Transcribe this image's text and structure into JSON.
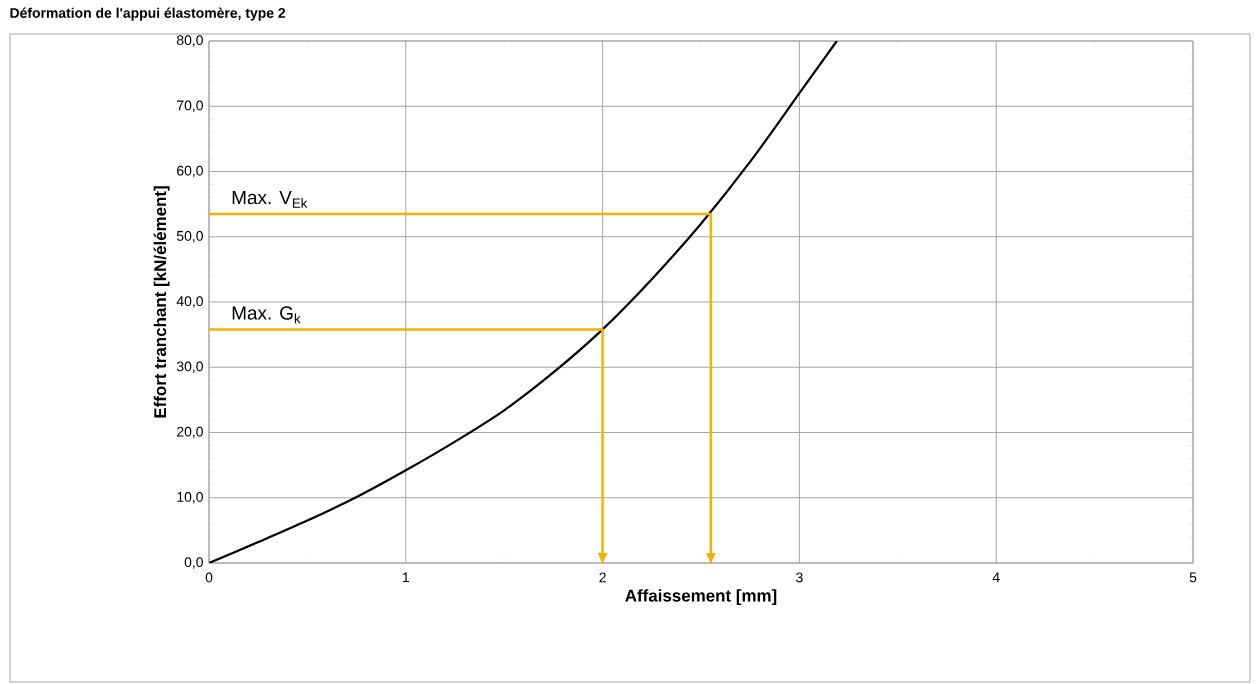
{
  "chart_data": {
    "type": "line",
    "title": "Déformation de l'appui élastomère, type 2",
    "xlabel": "Affaissement [mm]",
    "ylabel": "Effort tranchant [kN/élément]",
    "x": [
      0,
      0.25,
      0.5,
      0.75,
      1,
      1.25,
      1.5,
      1.75,
      2,
      2.25,
      2.5,
      2.75,
      3,
      3.19
    ],
    "series": [
      {
        "color": "#000000",
        "values": [
          0,
          3.2,
          6.5,
          10.1,
          14.2,
          18.6,
          23.4,
          29.2,
          35.8,
          43.5,
          52.0,
          61.5,
          72.0,
          80.0
        ]
      },
      {
        "color": "#f5b000",
        "x": [
          0,
          2.55,
          2.55
        ],
        "values": [
          53.5,
          53.5,
          0
        ]
      },
      {
        "color": "#f5b000",
        "x": [
          0,
          2.0,
          2.0
        ],
        "values": [
          35.8,
          35.8,
          0
        ]
      }
    ],
    "xlim": [
      0,
      5
    ],
    "xticks": [
      0,
      1,
      2,
      3,
      4,
      5
    ],
    "ylim": [
      0,
      80
    ],
    "yticks": [
      {
        "value": 0,
        "label": "0,0"
      },
      {
        "value": 10,
        "label": "10,0"
      },
      {
        "value": 20,
        "label": "20,0"
      },
      {
        "value": 30,
        "label": "30,0"
      },
      {
        "value": 40,
        "label": "40,0"
      },
      {
        "value": 50,
        "label": "50,0"
      },
      {
        "value": 60,
        "label": "60,0"
      },
      {
        "value": 70,
        "label": "70,0"
      },
      {
        "value": 80,
        "label": "80,0"
      }
    ],
    "annotations": [
      "Max. V$_{Ek}$",
      "Max. G$_{k}$"
    ],
    "grid": true,
    "marker": "none",
    "line_style": "solid"
  }
}
